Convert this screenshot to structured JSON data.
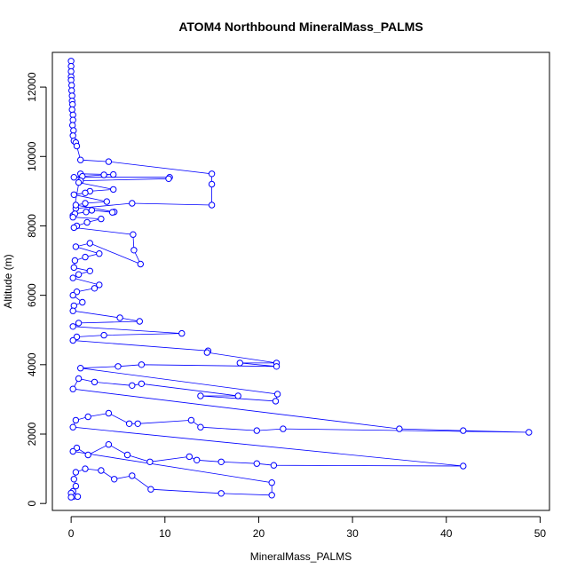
{
  "chart_data": {
    "type": "scatter",
    "title": "ATOM4 Northbound MineralMass_PALMS",
    "xlabel": "MineralMass_PALMS",
    "ylabel": "Altitude (m)",
    "xlim": [
      -2,
      51
    ],
    "ylim": [
      -200,
      13000
    ],
    "xticks": [
      0,
      10,
      20,
      30,
      40,
      50
    ],
    "yticks": [
      0,
      2000,
      4000,
      6000,
      8000,
      10000,
      12000
    ],
    "grid": false,
    "legend": "none",
    "series_color": "#0000ff",
    "series": [
      {
        "points": [
          [
            0.0,
            12750
          ],
          [
            0.0,
            12600
          ],
          [
            0.0,
            12450
          ],
          [
            0.0,
            12300
          ],
          [
            0.0,
            12200
          ],
          [
            0.05,
            12050
          ],
          [
            0.05,
            11900
          ],
          [
            0.1,
            11750
          ],
          [
            0.1,
            11600
          ],
          [
            0.15,
            11500
          ],
          [
            0.1,
            11350
          ],
          [
            0.2,
            11200
          ],
          [
            0.2,
            11050
          ],
          [
            0.15,
            10900
          ],
          [
            0.25,
            10750
          ],
          [
            0.2,
            10600
          ],
          [
            0.3,
            10450
          ],
          [
            0.5,
            10400
          ],
          [
            0.6,
            10300
          ],
          [
            1.0,
            9900
          ],
          [
            4.0,
            9850
          ],
          [
            15.0,
            9500
          ],
          [
            15.0,
            9200
          ],
          [
            15.0,
            8600
          ],
          [
            6.5,
            8650
          ],
          [
            0.5,
            8500
          ],
          [
            0.2,
            8300
          ],
          [
            1.0,
            9500
          ],
          [
            4.5,
            9480
          ],
          [
            3.5,
            9470
          ],
          [
            1.2,
            9430
          ],
          [
            0.3,
            9400
          ],
          [
            10.5,
            9400
          ],
          [
            10.4,
            9360
          ],
          [
            1.0,
            9300
          ],
          [
            0.8,
            9250
          ],
          [
            4.5,
            9050
          ],
          [
            2.0,
            9000
          ],
          [
            1.5,
            8950
          ],
          [
            0.3,
            8900
          ],
          [
            3.8,
            8700
          ],
          [
            1.5,
            8650
          ],
          [
            0.5,
            8600
          ],
          [
            4.6,
            8400
          ],
          [
            4.4,
            8390
          ],
          [
            2.2,
            8450
          ],
          [
            1.6,
            8400
          ],
          [
            0.4,
            8350
          ],
          [
            0.2,
            8250
          ],
          [
            3.2,
            8200
          ],
          [
            1.7,
            8100
          ],
          [
            0.6,
            8000
          ],
          [
            0.3,
            7950
          ],
          [
            6.6,
            7750
          ],
          [
            6.7,
            7300
          ],
          [
            7.4,
            6900
          ],
          [
            2.0,
            7500
          ],
          [
            0.5,
            7400
          ],
          [
            3.0,
            7200
          ],
          [
            1.5,
            7100
          ],
          [
            0.4,
            7000
          ],
          [
            0.3,
            6800
          ],
          [
            2.0,
            6700
          ],
          [
            0.8,
            6600
          ],
          [
            0.2,
            6500
          ],
          [
            3.0,
            6300
          ],
          [
            2.5,
            6200
          ],
          [
            0.6,
            6100
          ],
          [
            0.2,
            6000
          ],
          [
            1.2,
            5800
          ],
          [
            0.3,
            5700
          ],
          [
            0.2,
            5550
          ],
          [
            5.2,
            5350
          ],
          [
            7.3,
            5250
          ],
          [
            0.8,
            5200
          ],
          [
            0.2,
            5100
          ],
          [
            11.8,
            4900
          ],
          [
            3.5,
            4850
          ],
          [
            0.6,
            4800
          ],
          [
            0.2,
            4700
          ],
          [
            14.6,
            4400
          ],
          [
            14.5,
            4350
          ],
          [
            21.9,
            4050
          ],
          [
            18.0,
            4050
          ],
          [
            21.9,
            3950
          ],
          [
            7.5,
            4000
          ],
          [
            5.0,
            3950
          ],
          [
            1.0,
            3900
          ],
          [
            22.0,
            3150
          ],
          [
            21.8,
            2950
          ],
          [
            13.8,
            3100
          ],
          [
            17.8,
            3100
          ],
          [
            7.5,
            3450
          ],
          [
            6.5,
            3400
          ],
          [
            2.5,
            3500
          ],
          [
            0.8,
            3600
          ],
          [
            0.2,
            3300
          ],
          [
            35.0,
            2150
          ],
          [
            41.8,
            2100
          ],
          [
            48.8,
            2050
          ],
          [
            22.6,
            2150
          ],
          [
            19.8,
            2100
          ],
          [
            13.8,
            2200
          ],
          [
            12.8,
            2400
          ],
          [
            7.1,
            2300
          ],
          [
            6.2,
            2300
          ],
          [
            4.0,
            2600
          ],
          [
            1.8,
            2500
          ],
          [
            0.5,
            2400
          ],
          [
            0.2,
            2200
          ],
          [
            41.8,
            1080
          ],
          [
            21.6,
            1100
          ],
          [
            19.8,
            1150
          ],
          [
            16.0,
            1200
          ],
          [
            13.4,
            1250
          ],
          [
            12.6,
            1350
          ],
          [
            8.4,
            1200
          ],
          [
            6.0,
            1400
          ],
          [
            4.0,
            1700
          ],
          [
            1.8,
            1400
          ],
          [
            0.6,
            1600
          ],
          [
            0.2,
            1500
          ],
          [
            21.4,
            600
          ],
          [
            21.4,
            240
          ],
          [
            16.0,
            290
          ],
          [
            8.5,
            410
          ],
          [
            6.5,
            800
          ],
          [
            4.6,
            700
          ],
          [
            3.2,
            950
          ],
          [
            1.5,
            1000
          ],
          [
            0.5,
            900
          ],
          [
            0.3,
            700
          ],
          [
            0.5,
            500
          ],
          [
            0.2,
            350
          ],
          [
            0.1,
            230
          ],
          [
            0.3,
            210
          ],
          [
            0.7,
            200
          ],
          [
            0.0,
            300
          ],
          [
            0.0,
            180
          ]
        ]
      }
    ]
  }
}
